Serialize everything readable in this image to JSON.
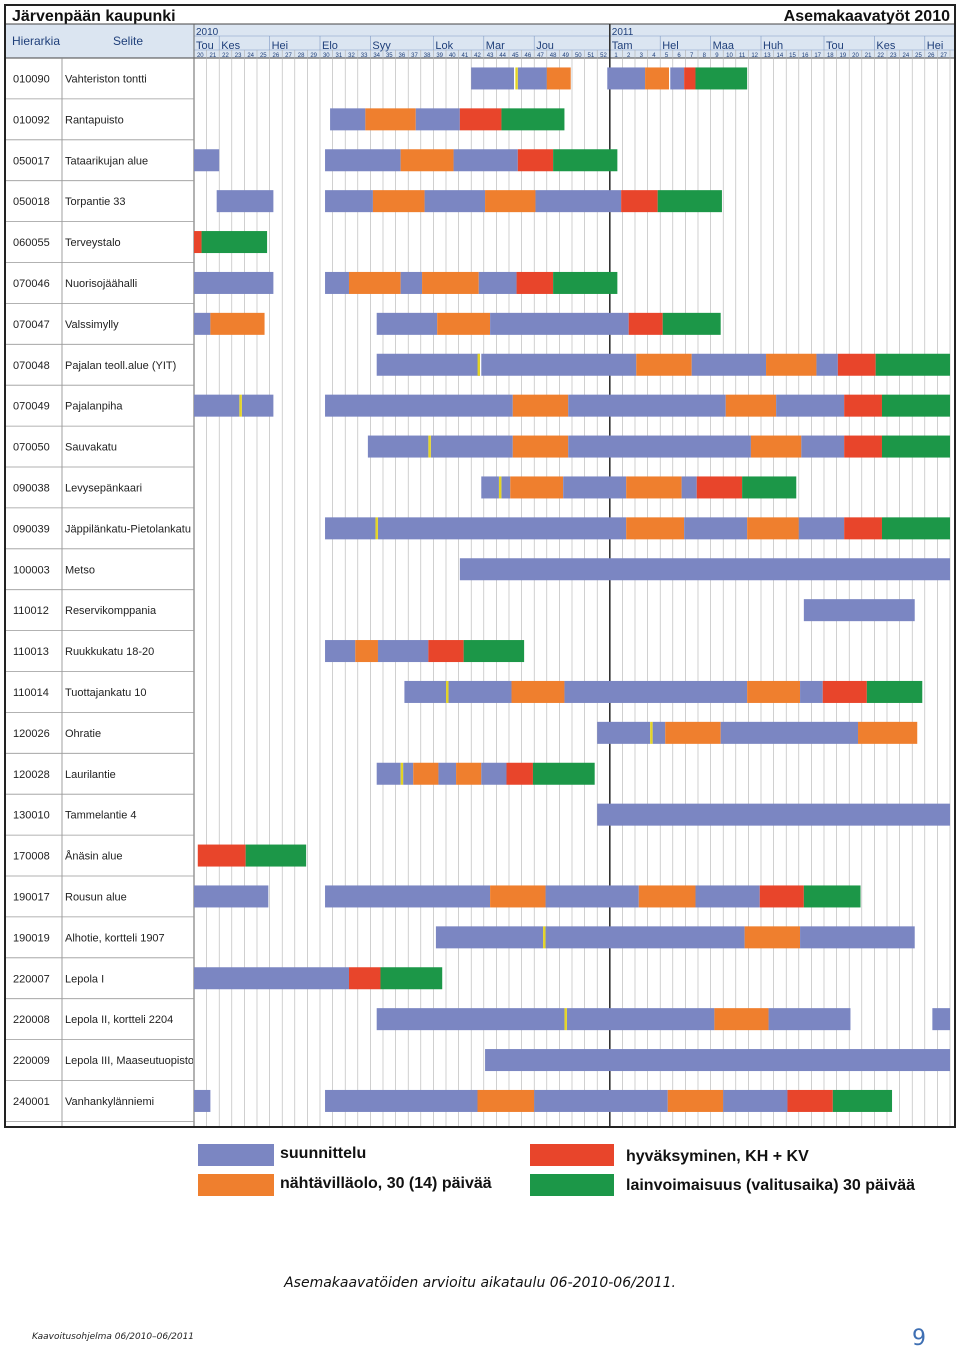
{
  "header": {
    "org": "Järvenpään kaupunki",
    "title": "Asemakaavatyöt 2010",
    "col_hierarkia": "Hierarkia",
    "col_selite": "Selite"
  },
  "colors": {
    "suunnittelu": "#7b86c2",
    "nahtavillaolo": "#ef7f2e",
    "hyvaksyminen": "#e8452b",
    "lainvoimaisuus": "#1c9748",
    "milestone": "#e4d424",
    "header_bg": "#dbe5f1",
    "grid": "#b0b0b0"
  },
  "legend": [
    {
      "key": "suunnittelu",
      "label": "suunnittelu"
    },
    {
      "key": "nahtavillaolo",
      "label": "nähtävilläolo, 30 (14) päivää"
    },
    {
      "key": "hyvaksyminen",
      "label": "hyväksyminen, KH + KV"
    },
    {
      "key": "lainvoimaisuus",
      "label": "lainvoimaisuus (valitusaika) 30 päivää"
    }
  ],
  "caption": "Asemakaavatöiden arvioitu aikataulu 06-2010-06/2011.",
  "footer": "Kaavoitusohjelma 06/2010–06/2011",
  "page_number": "9",
  "chart_data": {
    "type": "gantt",
    "x_unit": "week",
    "years": [
      {
        "label": "2010",
        "start_week": 20
      },
      {
        "label": "2011",
        "start_week": 53
      }
    ],
    "months": [
      {
        "label": "Tou",
        "start": 20
      },
      {
        "label": "Kes",
        "start": 22
      },
      {
        "label": "Hei",
        "start": 26
      },
      {
        "label": "Elo",
        "start": 30
      },
      {
        "label": "Syy",
        "start": 34
      },
      {
        "label": "Lok",
        "start": 39
      },
      {
        "label": "Mar",
        "start": 43
      },
      {
        "label": "Jou",
        "start": 47
      },
      {
        "label": "Tam",
        "start": 53
      },
      {
        "label": "Hel",
        "start": 57
      },
      {
        "label": "Maa",
        "start": 61
      },
      {
        "label": "Huh",
        "start": 65
      },
      {
        "label": "Tou",
        "start": 70
      },
      {
        "label": "Kes",
        "start": 74
      },
      {
        "label": "Hei",
        "start": 78
      }
    ],
    "week_start": 20,
    "week_count": 60,
    "week_labels": [
      "20",
      "21",
      "22",
      "23",
      "24",
      "25",
      "26",
      "27",
      "28",
      "29",
      "30",
      "31",
      "32",
      "33",
      "34",
      "35",
      "36",
      "37",
      "38",
      "39",
      "40",
      "41",
      "42",
      "43",
      "44",
      "45",
      "46",
      "47",
      "48",
      "49",
      "50",
      "51",
      "52",
      "1",
      "2",
      "3",
      "4",
      "5",
      "6",
      "7",
      "8",
      "9",
      "10",
      "11",
      "12",
      "13",
      "14",
      "15",
      "16",
      "17",
      "18",
      "19",
      "20",
      "21",
      "22",
      "23",
      "24",
      "25",
      "26",
      "27"
    ],
    "year_divider_week": 53,
    "rows": [
      {
        "id": "010090",
        "name": "Vahteriston tontti",
        "segments": [
          [
            42.0,
            45.4,
            "s"
          ],
          [
            45.7,
            48.0,
            "s"
          ],
          [
            48.0,
            49.9,
            "n"
          ],
          [
            52.8,
            55.8,
            "s"
          ],
          [
            55.8,
            57.7,
            "n"
          ],
          [
            57.8,
            58.9,
            "s"
          ],
          [
            58.9,
            59.8,
            "h"
          ],
          [
            59.8,
            63.9,
            "l"
          ]
        ],
        "milestones": [
          45.6
        ]
      },
      {
        "id": "010092",
        "name": "Rantapuisto",
        "segments": [
          [
            30.8,
            33.6,
            "s"
          ],
          [
            33.6,
            37.6,
            "n"
          ],
          [
            37.6,
            41.1,
            "s"
          ],
          [
            41.1,
            44.4,
            "h"
          ],
          [
            44.4,
            49.4,
            "l"
          ]
        ],
        "milestones": []
      },
      {
        "id": "050017",
        "name": "Tataarikujan alue",
        "segments": [
          [
            20.0,
            22.0,
            "s"
          ],
          [
            30.4,
            36.4,
            "s"
          ],
          [
            36.4,
            40.6,
            "n"
          ],
          [
            40.6,
            45.7,
            "s"
          ],
          [
            45.7,
            48.5,
            "h"
          ],
          [
            48.5,
            53.6,
            "l"
          ]
        ],
        "milestones": []
      },
      {
        "id": "050018",
        "name": "Torpantie 33",
        "segments": [
          [
            21.8,
            26.3,
            "s"
          ],
          [
            30.4,
            34.2,
            "s"
          ],
          [
            34.2,
            38.3,
            "n"
          ],
          [
            38.3,
            43.1,
            "s"
          ],
          [
            43.1,
            47.1,
            "n"
          ],
          [
            47.1,
            53.9,
            "s"
          ],
          [
            53.9,
            56.8,
            "h"
          ],
          [
            56.8,
            61.9,
            "l"
          ]
        ],
        "milestones": []
      },
      {
        "id": "060055",
        "name": "Terveystalo",
        "segments": [
          [
            20.0,
            20.6,
            "h"
          ],
          [
            20.6,
            25.8,
            "l"
          ]
        ],
        "milestones": []
      },
      {
        "id": "070046",
        "name": "Nuorisojäähalli",
        "segments": [
          [
            20.0,
            26.3,
            "s"
          ],
          [
            30.4,
            32.3,
            "s"
          ],
          [
            32.3,
            36.4,
            "n"
          ],
          [
            36.4,
            38.1,
            "s"
          ],
          [
            38.1,
            42.6,
            "n"
          ],
          [
            42.6,
            45.6,
            "s"
          ],
          [
            45.6,
            48.5,
            "h"
          ],
          [
            48.5,
            53.6,
            "l"
          ]
        ],
        "milestones": []
      },
      {
        "id": "070047",
        "name": "Valssimylly",
        "segments": [
          [
            20.0,
            21.3,
            "s"
          ],
          [
            21.3,
            25.6,
            "n"
          ],
          [
            34.5,
            39.3,
            "s"
          ],
          [
            39.3,
            43.5,
            "n"
          ],
          [
            43.5,
            54.5,
            "s"
          ],
          [
            54.5,
            57.2,
            "h"
          ],
          [
            57.2,
            61.8,
            "l"
          ]
        ],
        "milestones": []
      },
      {
        "id": "070048",
        "name": "Pajalan teoll.alue (YIT)",
        "segments": [
          [
            34.5,
            42.7,
            "s"
          ],
          [
            42.8,
            55.1,
            "s"
          ],
          [
            55.1,
            59.5,
            "n"
          ],
          [
            59.5,
            65.4,
            "s"
          ],
          [
            65.4,
            69.4,
            "n"
          ],
          [
            69.4,
            71.1,
            "s"
          ],
          [
            71.1,
            74.1,
            "h"
          ],
          [
            74.1,
            80.0,
            "l"
          ]
        ],
        "milestones": [
          42.6
        ]
      },
      {
        "id": "070049",
        "name": "Pajalanpiha",
        "segments": [
          [
            20.0,
            23.6,
            "s"
          ],
          [
            23.8,
            26.3,
            "s"
          ],
          [
            30.4,
            45.3,
            "s"
          ],
          [
            45.3,
            49.7,
            "n"
          ],
          [
            49.7,
            62.2,
            "s"
          ],
          [
            62.2,
            66.2,
            "n"
          ],
          [
            66.2,
            71.6,
            "s"
          ],
          [
            71.6,
            74.6,
            "h"
          ],
          [
            74.6,
            80.0,
            "l"
          ]
        ],
        "milestones": [
          23.7
        ]
      },
      {
        "id": "070050",
        "name": "Sauvakatu",
        "segments": [
          [
            33.8,
            38.6,
            "s"
          ],
          [
            38.8,
            45.3,
            "s"
          ],
          [
            45.3,
            49.7,
            "n"
          ],
          [
            49.7,
            64.2,
            "s"
          ],
          [
            64.2,
            68.2,
            "n"
          ],
          [
            68.2,
            71.6,
            "s"
          ],
          [
            71.6,
            74.6,
            "h"
          ],
          [
            74.6,
            80.0,
            "l"
          ]
        ],
        "milestones": [
          38.7
        ]
      },
      {
        "id": "090038",
        "name": "Levysepänkaari",
        "segments": [
          [
            42.8,
            44.2,
            "s"
          ],
          [
            44.4,
            45.1,
            "s"
          ],
          [
            45.1,
            49.3,
            "n"
          ],
          [
            49.3,
            54.3,
            "s"
          ],
          [
            54.3,
            58.7,
            "n"
          ],
          [
            58.7,
            59.9,
            "s"
          ],
          [
            59.9,
            63.5,
            "h"
          ],
          [
            63.5,
            67.8,
            "l"
          ]
        ],
        "milestones": [
          44.3
        ]
      },
      {
        "id": "090039",
        "name": "Jäppilänkatu-Pietolankatu",
        "segments": [
          [
            30.4,
            34.4,
            "s"
          ],
          [
            34.6,
            54.3,
            "s"
          ],
          [
            54.3,
            58.9,
            "n"
          ],
          [
            58.9,
            63.9,
            "s"
          ],
          [
            63.9,
            68.0,
            "n"
          ],
          [
            68.0,
            71.6,
            "s"
          ],
          [
            71.6,
            74.6,
            "h"
          ],
          [
            74.6,
            80.0,
            "l"
          ]
        ],
        "milestones": [
          34.5
        ]
      },
      {
        "id": "100003",
        "name": "Metso",
        "segments": [
          [
            41.1,
            80.0,
            "s"
          ]
        ],
        "milestones": []
      },
      {
        "id": "110012",
        "name": "Reservikomppania",
        "segments": [
          [
            68.4,
            77.2,
            "s"
          ]
        ],
        "milestones": []
      },
      {
        "id": "110013",
        "name": "Ruukkukatu 18-20",
        "segments": [
          [
            30.4,
            32.8,
            "s"
          ],
          [
            32.8,
            34.6,
            "n"
          ],
          [
            34.6,
            38.6,
            "s"
          ],
          [
            38.6,
            41.4,
            "h"
          ],
          [
            41.4,
            46.2,
            "l"
          ]
        ],
        "milestones": []
      },
      {
        "id": "110014",
        "name": "Tuottajankatu 10",
        "segments": [
          [
            36.7,
            40.0,
            "s"
          ],
          [
            40.2,
            45.2,
            "s"
          ],
          [
            45.2,
            49.4,
            "n"
          ],
          [
            49.4,
            63.9,
            "s"
          ],
          [
            63.9,
            68.1,
            "n"
          ],
          [
            68.1,
            69.9,
            "s"
          ],
          [
            69.9,
            73.4,
            "h"
          ],
          [
            73.4,
            77.8,
            "l"
          ]
        ],
        "milestones": [
          40.1
        ]
      },
      {
        "id": "120026",
        "name": "Ohratie",
        "segments": [
          [
            52.0,
            56.2,
            "s"
          ],
          [
            56.4,
            57.4,
            "s"
          ],
          [
            57.4,
            61.8,
            "n"
          ],
          [
            61.8,
            72.7,
            "s"
          ],
          [
            72.7,
            77.4,
            "n"
          ]
        ],
        "milestones": [
          56.3
        ]
      },
      {
        "id": "120028",
        "name": "Laurilantie",
        "segments": [
          [
            34.5,
            36.4,
            "s"
          ],
          [
            36.6,
            37.4,
            "s"
          ],
          [
            37.4,
            39.4,
            "n"
          ],
          [
            39.4,
            40.8,
            "s"
          ],
          [
            40.8,
            42.8,
            "n"
          ],
          [
            42.8,
            44.8,
            "s"
          ],
          [
            44.8,
            46.9,
            "h"
          ],
          [
            46.9,
            51.8,
            "l"
          ]
        ],
        "milestones": [
          36.5
        ]
      },
      {
        "id": "130010",
        "name": "Tammelantie 4",
        "segments": [
          [
            52.0,
            80.0,
            "s"
          ]
        ],
        "milestones": []
      },
      {
        "id": "170008",
        "name": "Ånäsin alue",
        "segments": [
          [
            20.3,
            24.1,
            "h"
          ],
          [
            24.1,
            28.9,
            "l"
          ]
        ],
        "milestones": []
      },
      {
        "id": "190017",
        "name": "Rousun alue",
        "segments": [
          [
            20.0,
            25.9,
            "s"
          ],
          [
            30.4,
            43.5,
            "s"
          ],
          [
            43.5,
            47.9,
            "n"
          ],
          [
            47.9,
            55.3,
            "s"
          ],
          [
            55.3,
            59.8,
            "n"
          ],
          [
            59.8,
            64.9,
            "s"
          ],
          [
            64.9,
            68.4,
            "h"
          ],
          [
            68.4,
            72.9,
            "l"
          ]
        ],
        "milestones": []
      },
      {
        "id": "190019",
        "name": "Alhotie, kortteli 1907",
        "segments": [
          [
            39.2,
            47.7,
            "s"
          ],
          [
            47.9,
            63.7,
            "s"
          ],
          [
            63.7,
            68.1,
            "n"
          ],
          [
            68.1,
            77.2,
            "s"
          ]
        ],
        "milestones": [
          47.8
        ]
      },
      {
        "id": "220007",
        "name": "Lepola I",
        "segments": [
          [
            20.0,
            32.3,
            "s"
          ],
          [
            32.3,
            34.8,
            "h"
          ],
          [
            34.8,
            39.7,
            "l"
          ]
        ],
        "milestones": []
      },
      {
        "id": "220008",
        "name": "Lepola II, kortteli 2204",
        "segments": [
          [
            34.5,
            49.4,
            "s"
          ],
          [
            49.6,
            61.3,
            "s"
          ],
          [
            61.3,
            65.6,
            "n"
          ],
          [
            65.6,
            72.1,
            "s"
          ],
          [
            78.6,
            80.0,
            "s"
          ]
        ],
        "milestones": [
          49.5
        ]
      },
      {
        "id": "220009",
        "name": "Lepola III, Maaseutuopisto",
        "segments": [
          [
            43.1,
            80.0,
            "s"
          ]
        ],
        "milestones": []
      },
      {
        "id": "240001",
        "name": "Vanhankylänniemi",
        "segments": [
          [
            20.0,
            21.3,
            "s"
          ],
          [
            30.4,
            42.5,
            "s"
          ],
          [
            42.5,
            47.0,
            "n"
          ],
          [
            47.0,
            57.6,
            "s"
          ],
          [
            57.6,
            62.0,
            "n"
          ],
          [
            62.0,
            67.1,
            "s"
          ],
          [
            67.1,
            70.7,
            "h"
          ],
          [
            70.7,
            75.4,
            "l"
          ]
        ],
        "milestones": []
      }
    ]
  }
}
